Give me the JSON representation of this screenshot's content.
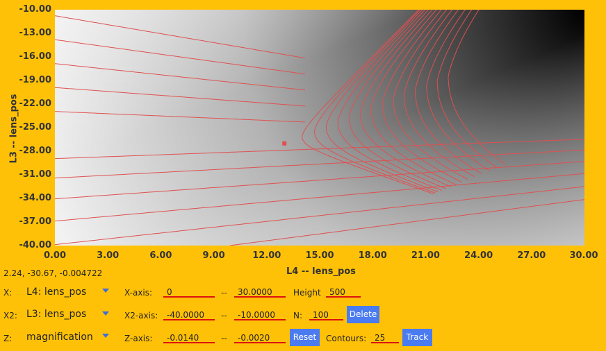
{
  "chart_data": {
    "type": "heatmap",
    "xlabel": "L4 -- lens_pos",
    "ylabel": "L3 -- lens_pos",
    "xlim": [
      0,
      30
    ],
    "ylim": [
      -40,
      -10
    ],
    "x_ticks": [
      "0.00",
      "3.00",
      "6.00",
      "9.00",
      "12.00",
      "15.00",
      "18.00",
      "21.00",
      "24.00",
      "27.00",
      "30.00"
    ],
    "y_ticks": [
      "-10.00",
      "-13.00",
      "-16.00",
      "-19.00",
      "-22.00",
      "-25.00",
      "-28.00",
      "-31.00",
      "-34.00",
      "-37.00",
      "-40.00"
    ],
    "colormap": "grayscale (white = low, black = high)",
    "contour_color": "#E05050",
    "contour_count": 25,
    "saddle_point": {
      "x": 13.0,
      "y": -27.0
    },
    "marker": {
      "x": 13.0,
      "y": -27.0
    }
  },
  "readout": "2.24, -30.67, -0.004722",
  "controls": {
    "row1": {
      "label": "X:",
      "select": "L4: lens_pos",
      "axis_label": "X-axis:",
      "min": "0",
      "sep": "--",
      "max": "30.0000",
      "extra_label": "Height",
      "extra_value": "500"
    },
    "row2": {
      "label": "X2:",
      "select": "L3: lens_pos",
      "axis_label": "X2-axis:",
      "min": "-40.0000",
      "sep": "--",
      "max": "-10.0000",
      "extra_label": "N:",
      "extra_value": "100",
      "button": "Delete"
    },
    "row3": {
      "label": "Z:",
      "select": "magnification",
      "axis_label": "Z-axis:",
      "min": "-0.0140",
      "sep": "--",
      "max": "-0.0020",
      "button": "Reset",
      "extra_label": "Contours:",
      "extra_value": "25",
      "button2": "Track"
    }
  },
  "colors": {
    "background": "#FFC107",
    "button": "#4A7BF0",
    "field_underline": "#DD1111",
    "contour": "#E05050"
  }
}
